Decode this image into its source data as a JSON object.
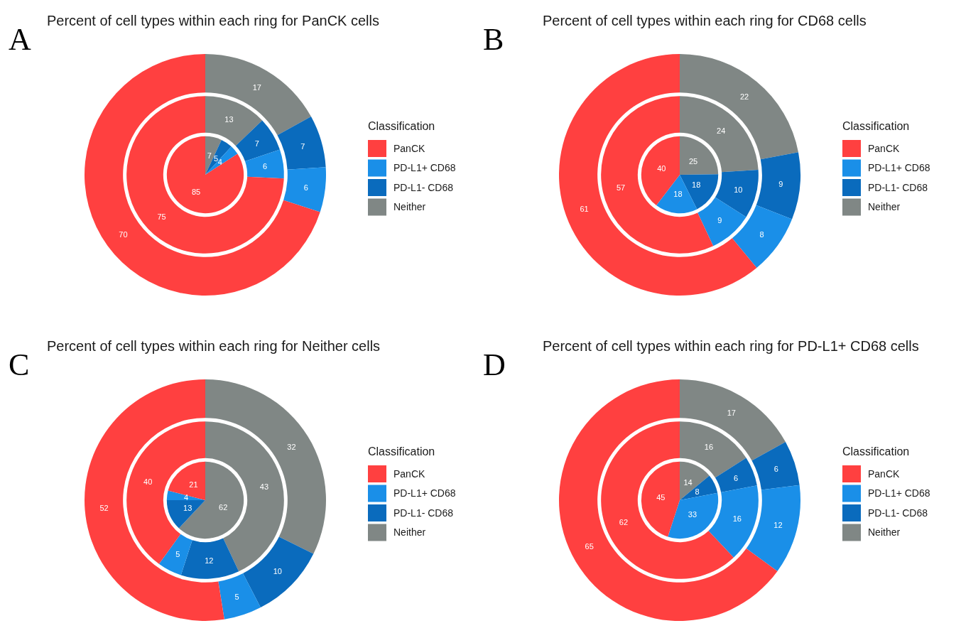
{
  "chart_data": [
    {
      "type": "donut",
      "title": "Percent of cell types within each ring for PanCK cells",
      "annotations": [
        "A"
      ],
      "legend_title": "Classification",
      "legend": "right",
      "data_labels": true,
      "categories": [
        "PanCK",
        "PD-L1+ CD68",
        "PD-L1- CD68",
        "Neither"
      ],
      "colors": [
        "#ff4040",
        "#1a8fe8",
        "#0a6bbd",
        "#808785"
      ],
      "series": [
        {
          "values": [
            85,
            4,
            5,
            7
          ]
        },
        {
          "values": [
            75,
            6,
            7,
            13
          ]
        },
        {
          "values": [
            70,
            6,
            7,
            17
          ]
        }
      ]
    },
    {
      "type": "donut",
      "title": "Percent of cell types within each ring for CD68 cells",
      "annotations": [
        "B"
      ],
      "legend_title": "Classification",
      "legend": "right",
      "data_labels": true,
      "categories": [
        "PanCK",
        "PD-L1+ CD68",
        "PD-L1- CD68",
        "Neither"
      ],
      "colors": [
        "#ff4040",
        "#1a8fe8",
        "#0a6bbd",
        "#808785"
      ],
      "series": [
        {
          "values": [
            40,
            18,
            18,
            25
          ]
        },
        {
          "values": [
            57,
            9,
            10,
            24
          ]
        },
        {
          "values": [
            61,
            8,
            9,
            22
          ]
        }
      ]
    },
    {
      "type": "donut",
      "title": "Percent of cell types within each ring for Neither cells",
      "annotations": [
        "C"
      ],
      "legend_title": "Classification",
      "legend": "right",
      "data_labels": true,
      "categories": [
        "PanCK",
        "PD-L1+ CD68",
        "PD-L1- CD68",
        "Neither"
      ],
      "colors": [
        "#ff4040",
        "#1a8fe8",
        "#0a6bbd",
        "#808785"
      ],
      "series": [
        {
          "values": [
            21,
            4,
            13,
            62
          ]
        },
        {
          "values": [
            40,
            5,
            12,
            43
          ]
        },
        {
          "values": [
            52,
            5,
            10,
            32
          ]
        }
      ]
    },
    {
      "type": "donut",
      "title": "Percent of cell types within each ring for PD-L1+ CD68 cells",
      "annotations": [
        "D"
      ],
      "legend_title": "Classification",
      "legend": "right",
      "data_labels": true,
      "categories": [
        "PanCK",
        "PD-L1+ CD68",
        "PD-L1- CD68",
        "Neither"
      ],
      "colors": [
        "#ff4040",
        "#1a8fe8",
        "#0a6bbd",
        "#808785"
      ],
      "series": [
        {
          "values": [
            45,
            33,
            8,
            14
          ]
        },
        {
          "values": [
            62,
            16,
            6,
            16
          ]
        },
        {
          "values": [
            65,
            12,
            6,
            17
          ]
        }
      ]
    }
  ]
}
